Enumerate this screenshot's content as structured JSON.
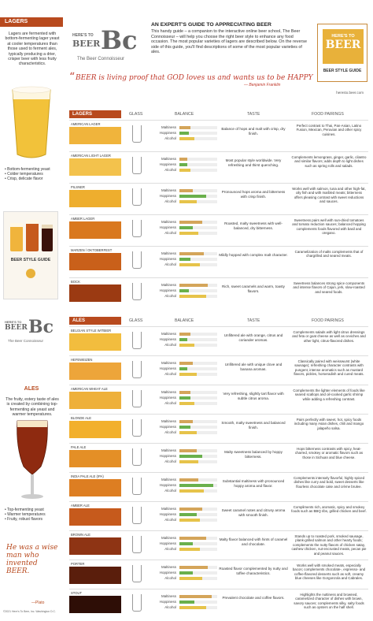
{
  "sidebar": {
    "lagers_title": "LAGERS",
    "lagers_text": "Lagers are fermented with bottom-fermenting lager yeast at cooler temperatures than those used to ferment ales, typically producing a drier, crisper beer with less fruity characteristics.",
    "lagers_bullets": [
      "• Bottom-fermenting yeast",
      "• Colder temperatures",
      "• Crisp, delicate flavor"
    ],
    "guide_card_label": "BEER STYLE GUIDE",
    "ales_title": "ALES",
    "ales_text": "The fruity, estery taste of ales is created by combining top-fermenting ale yeast and warmer temperatures.",
    "ales_bullets": [
      "• Top-fermenting yeast",
      "• Warmer temperatures",
      "• Fruity, robust flavors"
    ],
    "plato_quote": "He was a wise man who invented BEER.",
    "plato_by": "—Plato",
    "footer": "©2021 Here's To Beer, Inc. Washington D.C."
  },
  "header": {
    "logo_top": "HERE'S TO",
    "logo_beer": "BEER",
    "logo_bc": "Bc",
    "logo_sub": "The Beer Connoisseur",
    "title": "AN EXPERT'S GUIDE TO APPRECIATING BEER",
    "text": "This handy guide – a companion to the interactive online beer school, The Beer Connoisseur – will help you choose the right beer style to enhance any food occasion. The most popular varieties of lagers are described below. On the reverse side of this guide, you'll find descriptions of some of the most popular varieties of ales.",
    "quote": "BEER is living proof that GOD loves us and wants us to be HAPPY",
    "quote_by": "— Benjamin Franklin",
    "right_logo_top": "HERE'S TO",
    "right_logo_beer": "BEER",
    "right_logo_guide": "BEER STYLE GUIDE",
    "right_logo_url": "heresto.beer.com"
  },
  "columns": {
    "glass": "GLASS",
    "balance": "BALANCE",
    "taste": "TASTE",
    "pairings": "FOOD PAIRINGS"
  },
  "balance_labels": [
    "Maltiness",
    "Hoppiness",
    "Alcohol"
  ],
  "colors": {
    "accent": "#b84a1e",
    "malt_bar": "#d4a55a",
    "hop_bar": "#6ab04c",
    "alc_bar": "#e6c34a"
  },
  "lagers_section_title": "LAGERS",
  "ales_section_title": "ALES",
  "lagers": [
    {
      "name": "AMERICAN LAGER",
      "color": "#f0b43c",
      "malt": 0.3,
      "hop": 0.25,
      "alc": 0.4,
      "taste": "Balance of hops and malt with crisp, dry finish.",
      "pair": "Perfect contrast to Thai, Pan-Asian, Latino Fusion, Mexican, Peruvian and other spicy cuisines."
    },
    {
      "name": "AMERICAN LIGHT LAGER",
      "color": "#f3c24c",
      "malt": 0.2,
      "hop": 0.2,
      "alc": 0.3,
      "taste": "Most popular style worldwide. Very refreshing and thirst quenching.",
      "pair": "Complements lemongrass, ginger, garlic, cilantro and similar flavors; adds depth to light dishes such as spring rolls and salads."
    },
    {
      "name": "PILSNER",
      "color": "#eeae2e",
      "malt": 0.35,
      "hop": 0.7,
      "alc": 0.45,
      "taste": "Pronounced hops aroma and bitterness with crisp finish.",
      "pair": "Works well with salmon, tuna and other high-fat, oily fish and with marbled meats; bitterness offers pleasing contrast with sweet reductions and sauces."
    },
    {
      "name": "AMBER LAGER",
      "color": "#d9781e",
      "malt": 0.6,
      "hop": 0.35,
      "alc": 0.5,
      "taste": "Roasted, malty sweetness with well-balanced, dry bitterness.",
      "pair": "Sweetness pairs well with sun-dried tomatoes and tomato reduction sauces; balanced hopping complements foods flavored with basil and oregano."
    },
    {
      "name": "MARZEN / OKTOBERFEST",
      "color": "#c9601a",
      "malt": 0.65,
      "hop": 0.3,
      "alc": 0.55,
      "taste": "Mildly hopped with complex malt character.",
      "pair": "Caramelization of malts complements that of chargrilled and seared meats."
    },
    {
      "name": "BOCK",
      "color": "#9b3a12",
      "malt": 0.75,
      "hop": 0.25,
      "alc": 0.7,
      "taste": "Rich, sweet caramels and warm, toasty flavors.",
      "pair": "Sweetness balances strong spice components and intense flavors of Cajun, jerk, slow-roasted and seared foods."
    }
  ],
  "ales": [
    {
      "name": "BELGIAN STYLE WITBIER",
      "color": "#f2bd3e",
      "malt": 0.3,
      "hop": 0.2,
      "alc": 0.4,
      "taste": "Unfiltered ale with orange, citrus and coriander aromas.",
      "pair": "Complements salads with light citrus dressings and feta or goat cheese as well as ceviches and other light, citrus-flavored dishes."
    },
    {
      "name": "HEFEWEIZEN",
      "color": "#eda53a",
      "malt": 0.35,
      "hop": 0.2,
      "alc": 0.45,
      "taste": "Unfiltered ale with unique clove and banana aromas.",
      "pair": "Classically paired with weisswurst (white sausage); refreshing character contrasts with pungent, intense aromatics such as mustard flavors, pickles, horseradish and cured meats."
    },
    {
      "name": "AMERICAN WHEAT ALE",
      "color": "#eeb03a",
      "malt": 0.3,
      "hop": 0.3,
      "alc": 0.4,
      "taste": "Very refreshing, slightly tart flavor with subtle citrus aroma.",
      "pair": "Complements the lighter elements of foods like seared scallops and oil-cooked garlic shrimp while adding a refreshing contrast."
    },
    {
      "name": "BLONDE ALE",
      "color": "#f2b02c",
      "malt": 0.35,
      "hop": 0.3,
      "alc": 0.45,
      "taste": "Smooth, malty sweetness and balanced finish.",
      "pair": "Pairs perfectly with sweet, hot, spicy foods including many Asian dishes, chili and mango jalapeño salsa."
    },
    {
      "name": "PALE ALE",
      "color": "#e48f26",
      "malt": 0.45,
      "hop": 0.6,
      "alc": 0.5,
      "taste": "Malty sweetness balanced by hoppy bitterness.",
      "pair": "Hops bitterness contrasts with spicy, heat-charred, smokey or aromatic flavors such as those in Sichuan and blue cheese."
    },
    {
      "name": "INDIA PALE ALE (IPA)",
      "color": "#dd7e22",
      "malt": 0.5,
      "hop": 0.9,
      "alc": 0.65,
      "taste": "Substantial maltiness with pronounced hoppy aroma and flavor.",
      "pair": "Complements intensely flavorful, highly spiced dishes like curry and bold, sweet desserts like flourless chocolate cake and crème brulee."
    },
    {
      "name": "AMBER ALE",
      "color": "#c65a1c",
      "malt": 0.6,
      "hop": 0.45,
      "alc": 0.55,
      "taste": "Sweet caramel notes and citrusy aroma with smooth finish.",
      "pair": "Compliments rich, aromatic, spicy and smokey foods such as BBQ ribs, grilled chicken and beef."
    },
    {
      "name": "BROWN ALE",
      "color": "#8e3414",
      "malt": 0.7,
      "hop": 0.35,
      "alc": 0.55,
      "taste": "Malty flavor balanced with hints of caramel and chocolate.",
      "pair": "Stands up to roasted pork, smoked sausage, plank-grilled salmon and other hearty foods; complements the nutty flavors of chicken satay, cashew chicken, nut-encrusted meats, pecan pie and peanut sauces."
    },
    {
      "name": "PORTER",
      "color": "#5a1e0c",
      "malt": 0.75,
      "hop": 0.35,
      "alc": 0.6,
      "taste": "Roasted flavor complemented by nutty and toffee characteristics.",
      "pair": "Works well with smoked meats, especially bacon; complements chocolate-, espresso- and coffee-flavored desserts such as soft, creamy blue cheeses like Gorgonzola and Cabrales."
    },
    {
      "name": "STOUT",
      "color": "#2e0e06",
      "malt": 0.85,
      "hop": 0.4,
      "alc": 0.7,
      "taste": "Prevalent chocolate and coffee flavors.",
      "pair": "Highlights the nuttiness and browned, caramelized character of dishes with brown, savory sauces; complements silky, salty foods such as oysters on the half shell."
    }
  ]
}
